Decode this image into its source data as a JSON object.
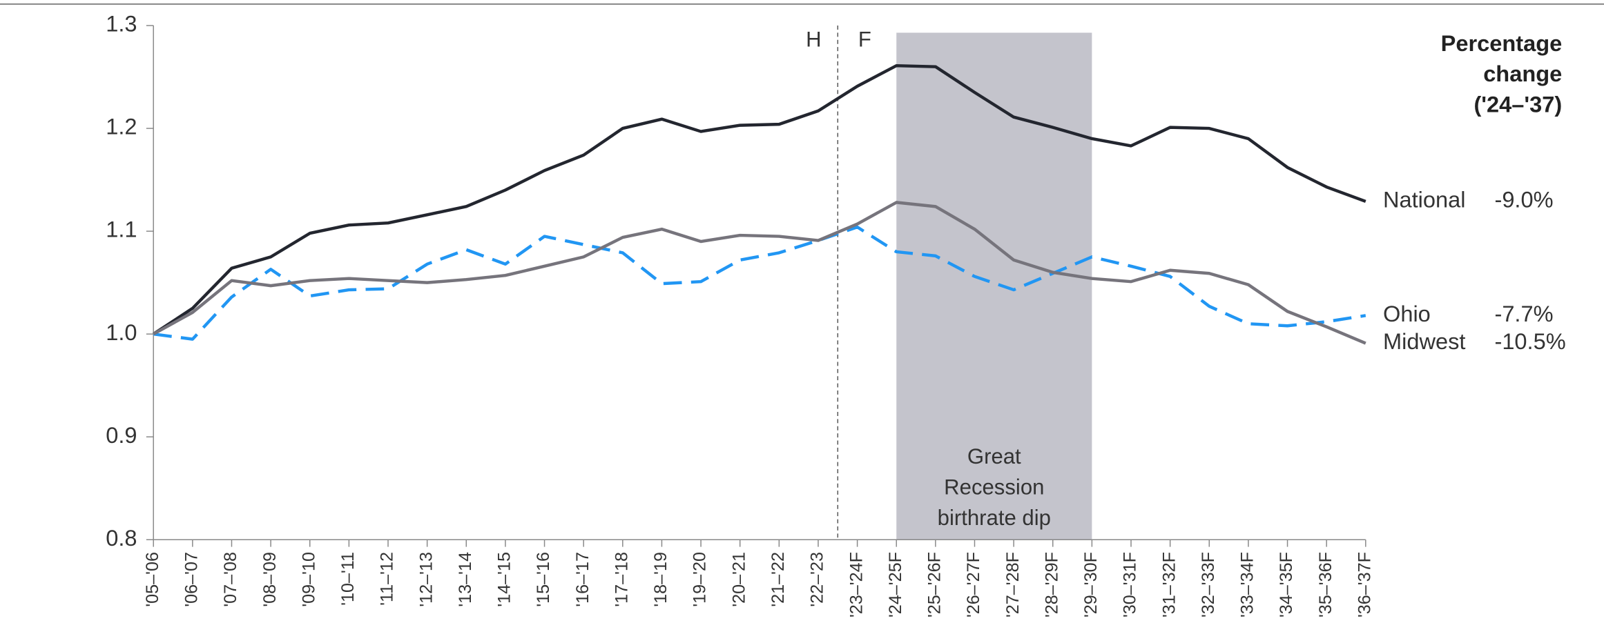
{
  "chart_data": {
    "type": "line",
    "categories": [
      "'05–'06",
      "'06–'07",
      "'07–'08",
      "'08–'09",
      "'09–'10",
      "'10–'11",
      "'11–'12",
      "'12–'13",
      "'13–'14",
      "'14–'15",
      "'15–'16",
      "'16–'17",
      "'17–'18",
      "'18–'19",
      "'19–'20",
      "'20–'21",
      "'21–'22",
      "'22–'23",
      "'23–'24F",
      "'24–'25F",
      "'25–'26F",
      "'26–'27F",
      "'27–'28F",
      "'28–'29F",
      "'29–'30F",
      "'30–'31F",
      "'31–'32F",
      "'32–'33F",
      "'33–'34F",
      "'34–'35F",
      "'35–'36F",
      "'36–'37F"
    ],
    "series": [
      {
        "name": "National",
        "change_label": "-9.0%",
        "color": "#23262f",
        "dashed": false,
        "values": [
          1.0,
          1.025,
          1.064,
          1.075,
          1.098,
          1.106,
          1.108,
          1.116,
          1.124,
          1.14,
          1.159,
          1.174,
          1.2,
          1.209,
          1.197,
          1.203,
          1.204,
          1.217,
          1.241,
          1.261,
          1.26,
          1.235,
          1.211,
          1.201,
          1.19,
          1.183,
          1.201,
          1.2,
          1.19,
          1.162,
          1.143,
          1.129
        ]
      },
      {
        "name": "Ohio",
        "change_label": "-7.7%",
        "color": "#2196f3",
        "dashed": true,
        "values": [
          1.0,
          0.995,
          1.036,
          1.063,
          1.037,
          1.043,
          1.044,
          1.068,
          1.082,
          1.068,
          1.095,
          1.087,
          1.079,
          1.049,
          1.051,
          1.072,
          1.079,
          1.091,
          1.104,
          1.08,
          1.076,
          1.056,
          1.043,
          1.059,
          1.075,
          1.066,
          1.056,
          1.027,
          1.01,
          1.008,
          1.012,
          1.018
        ]
      },
      {
        "name": "Midwest",
        "change_label": "-10.5%",
        "color": "#76747c",
        "dashed": false,
        "values": [
          1.0,
          1.021,
          1.052,
          1.047,
          1.052,
          1.054,
          1.052,
          1.05,
          1.053,
          1.057,
          1.066,
          1.075,
          1.094,
          1.102,
          1.09,
          1.096,
          1.095,
          1.091,
          1.107,
          1.128,
          1.124,
          1.102,
          1.072,
          1.06,
          1.054,
          1.051,
          1.062,
          1.059,
          1.048,
          1.022,
          1.007,
          0.991
        ]
      }
    ],
    "ylim": [
      0.8,
      1.3
    ],
    "yticks": [
      0.8,
      0.9,
      {
        "value": 1,
        "label": "1.0"
      },
      1.1,
      1.2,
      1.3
    ],
    "legend_title": [
      "Percentage",
      "change",
      "('24–'37)"
    ],
    "historical_label": "H",
    "forecast_label": "F",
    "forecast_start": "'23–'24F",
    "shaded_region": {
      "from": "'24–'25F",
      "to": "'29–'30F",
      "color": "#c4c4cc",
      "label": [
        "Great",
        "Recession",
        "birthrate dip"
      ]
    }
  }
}
